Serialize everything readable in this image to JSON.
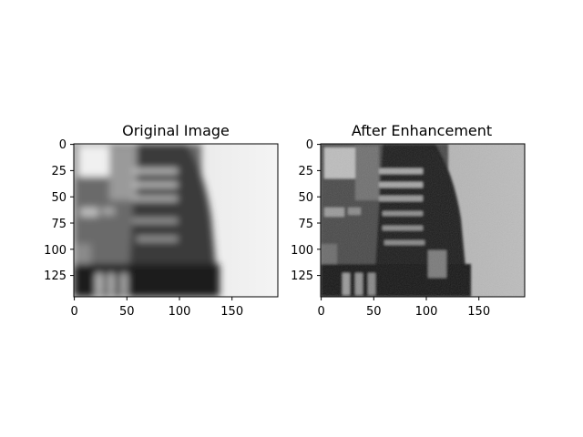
{
  "figure": {
    "panels": [
      {
        "title": "Original Image",
        "image_kind": "blurred-grayscale-photo",
        "x_ticks": [
          "0",
          "50",
          "100",
          "150"
        ],
        "y_ticks": [
          "0",
          "25",
          "50",
          "75",
          "100",
          "125"
        ],
        "x_tick_values": [
          0,
          50,
          100,
          150
        ],
        "y_tick_values": [
          0,
          25,
          50,
          75,
          100,
          125
        ],
        "x_range": [
          0,
          194
        ],
        "y_range": [
          0,
          146
        ]
      },
      {
        "title": "After Enhancement",
        "image_kind": "enhanced-grayscale-photo",
        "x_ticks": [
          "0",
          "50",
          "100",
          "150"
        ],
        "y_ticks": [
          "0",
          "25",
          "50",
          "75",
          "100",
          "125"
        ],
        "x_tick_values": [
          0,
          50,
          100,
          150
        ],
        "y_tick_values": [
          0,
          25,
          50,
          75,
          100,
          125
        ],
        "x_range": [
          0,
          194
        ],
        "y_range": [
          0,
          146
        ]
      }
    ],
    "colormap": "grayscale"
  }
}
